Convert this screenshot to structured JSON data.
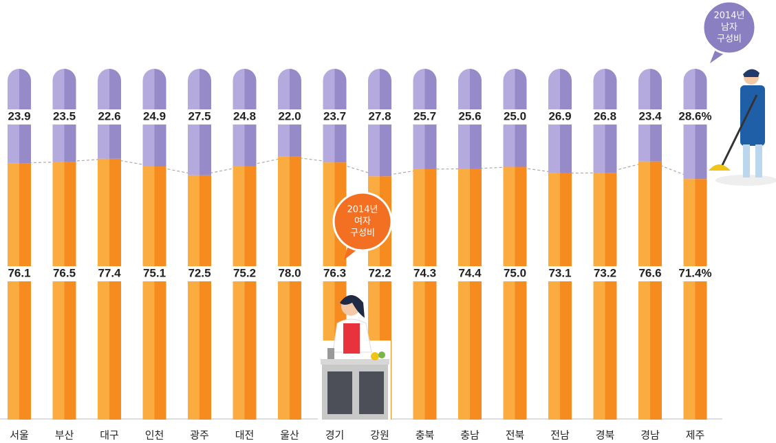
{
  "chart_data": {
    "type": "stacked_bar",
    "categories": [
      "서울",
      "부산",
      "대구",
      "인천",
      "광주",
      "대전",
      "울산",
      "경기",
      "강원",
      "충북",
      "충남",
      "전북",
      "전남",
      "경북",
      "경남",
      "제주"
    ],
    "series": [
      {
        "color": "#f7941d",
        "values": [
          76.1,
          76.5,
          77.4,
          75.1,
          72.5,
          75.2,
          78.0,
          76.3,
          72.2,
          74.3,
          74.4,
          75.0,
          73.1,
          73.2,
          76.6,
          71.4
        ],
        "value_labels": [
          "76.1",
          "76.5",
          "77.4",
          "75.1",
          "72.5",
          "75.2",
          "78.0",
          "76.3",
          "72.2",
          "74.3",
          "74.4",
          "75.0",
          "73.1",
          "73.2",
          "76.6",
          "71.4%"
        ]
      },
      {
        "color": "#9a8ecb",
        "values": [
          23.9,
          23.5,
          22.6,
          24.9,
          27.5,
          24.8,
          22.0,
          23.7,
          27.8,
          25.7,
          25.6,
          25.0,
          26.9,
          26.8,
          23.4,
          28.6
        ],
        "value_labels": [
          "23.9",
          "23.5",
          "22.6",
          "24.9",
          "27.5",
          "24.8",
          "22.0",
          "23.7",
          "27.8",
          "25.7",
          "25.6",
          "25.0",
          "26.9",
          "26.8",
          "23.4",
          "28.6%"
        ]
      }
    ],
    "ylim": [
      0,
      100
    ],
    "annotations": [
      {
        "lines": [
          "2014년",
          "여자",
          "구성비"
        ],
        "color": "#f36f21"
      },
      {
        "lines": [
          "2014년",
          "남자",
          "구성비"
        ],
        "color": "#8a7fc0"
      }
    ]
  }
}
